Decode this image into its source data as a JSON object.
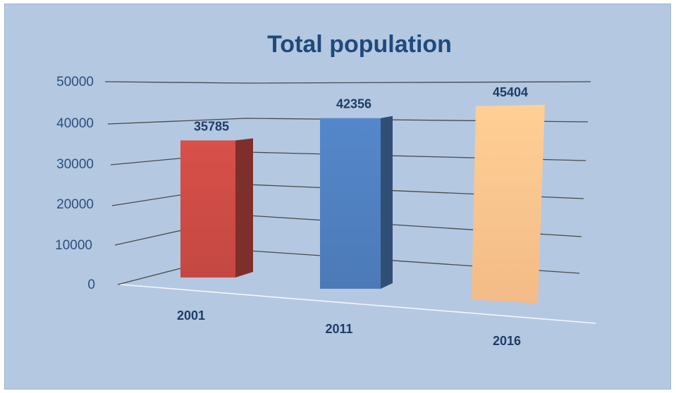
{
  "chart_data": {
    "type": "bar",
    "title": "Total population",
    "categories": [
      "2001",
      "2011",
      "2016"
    ],
    "values": [
      35785,
      42356,
      45404
    ],
    "ylim": [
      0,
      50000
    ],
    "yticks": [
      "0",
      "10000",
      "20000",
      "30000",
      "40000",
      "50000"
    ],
    "grid": true,
    "legend": "none",
    "data_labels": [
      "35785",
      "42356",
      "45404"
    ],
    "colors": [
      "#cc4b45",
      "#4f7fbf",
      "#fdc38d"
    ],
    "background": "#b4c8e2"
  }
}
